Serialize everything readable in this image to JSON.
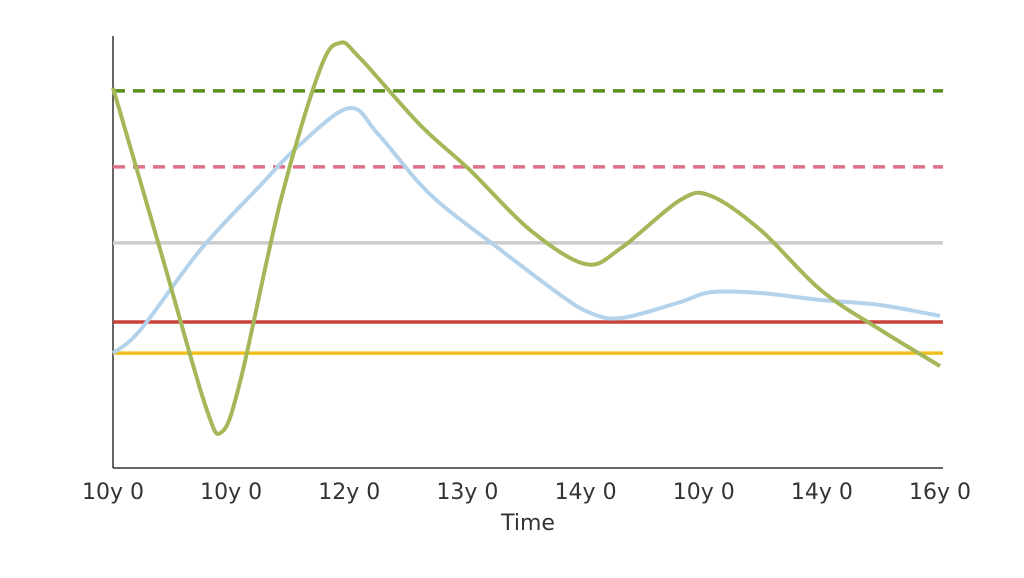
{
  "chart_data": {
    "type": "line",
    "xlabel": "Time",
    "xlim": [
      0,
      7
    ],
    "xticks": [
      {
        "value": 0,
        "label": "10y 0"
      },
      {
        "value": 1,
        "label": "10y 0"
      },
      {
        "value": 2,
        "label": "12y 0"
      },
      {
        "value": 3,
        "label": "13y 0"
      },
      {
        "value": 4,
        "label": "14y 0"
      },
      {
        "value": 5,
        "label": "10y 0"
      },
      {
        "value": 6,
        "label": "14y 0"
      },
      {
        "value": 7,
        "label": "16y 0"
      }
    ],
    "ylim": [
      0,
      100
    ],
    "series": [
      {
        "color": "#a4b85a",
        "x": [
          0,
          0.4,
          0.78,
          0.92,
          1.08,
          1.42,
          1.75,
          1.92,
          2.09,
          2.6,
          3.02,
          3.53,
          4.0,
          4.3,
          4.8,
          5.06,
          5.48,
          5.99,
          6.5,
          7.0
        ],
        "values": [
          88.0,
          50.5,
          14.6,
          8.3,
          20.4,
          62.0,
          92.1,
          98.4,
          94.9,
          79.4,
          69.0,
          55.1,
          47.2,
          50.9,
          62.0,
          63.0,
          55.1,
          41.2,
          31.9,
          23.6
        ]
      },
      {
        "color": "#b4d2ea",
        "x": [
          0,
          0.23,
          0.74,
          1.25,
          1.58,
          2.0,
          2.25,
          2.69,
          3.28,
          3.79,
          4.04,
          4.3,
          4.8,
          5.06,
          5.48,
          5.99,
          6.5,
          7.0
        ],
        "values": [
          26.6,
          31.9,
          50.5,
          65.5,
          74.8,
          83.3,
          77.1,
          63.2,
          50.5,
          40.0,
          35.9,
          34.7,
          38.4,
          40.7,
          40.5,
          38.9,
          37.7,
          35.2
        ]
      }
    ],
    "reference_lines": [
      {
        "value": 87.3,
        "color": "#5a8f1e",
        "dashed": true
      },
      {
        "value": 69.7,
        "color": "#e0708a",
        "dashed": true
      },
      {
        "value": 52.1,
        "color": "#cccccc",
        "dashed": false
      },
      {
        "value": 33.8,
        "color": "#c8443a",
        "dashed": false
      },
      {
        "value": 26.6,
        "color": "#f0c020",
        "dashed": false
      }
    ]
  }
}
